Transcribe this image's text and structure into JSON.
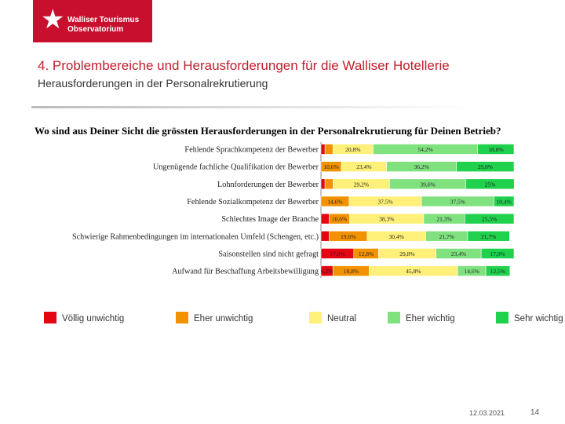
{
  "logo": {
    "line1": "Walliser Tourismus",
    "line2": "Observatorium",
    "icon": "star-icon"
  },
  "title": "4. Problembereiche und Herausforderungen für die Walliser Hotellerie",
  "subtitle": "Herausforderungen in der Personalrekrutierung",
  "footer": {
    "date": "12.03.2021",
    "page": "14"
  },
  "colors": {
    "brand": "#c8102e",
    "title": "#c0202c"
  },
  "chart_data": {
    "type": "bar",
    "orientation": "horizontal",
    "stacked": true,
    "percent_stacked": true,
    "title": "Wo sind aus Deiner Sicht die grössten Herausforderungen in der Personalrekrutierung für Deinen Betrieb?",
    "categories": [
      "Fehlende Sprachkompetenz der Bewerber",
      "Ungenügende fachliche Qualifikation der Bewerber",
      "Lohnforderungen der Bewerber",
      "Fehlende Sozialkompetenz der Bewerber",
      "Schlechtes Image der Branche",
      "Schwierige Rahmenbedingungen im internationalen Umfeld (Schengen, etc.)",
      "Saisonstellen sind nicht gefragt",
      "Aufwand für Beschaffung Arbeitsbewilligung"
    ],
    "series": [
      {
        "name": "Völlig unwichtig",
        "color": "#e30613",
        "values": [
          2.1,
          0,
          2.1,
          0,
          4.3,
          4.3,
          17.0,
          6.2
        ],
        "labels": [
          "",
          "",
          "",
          "",
          "",
          "",
          "17,0%",
          "6,2%"
        ]
      },
      {
        "name": "Eher unwichtig",
        "color": "#f39200",
        "values": [
          4.1,
          10.6,
          4.2,
          14.6,
          10.6,
          19.6,
          12.8,
          18.8
        ],
        "labels": [
          "",
          "10,6%",
          "",
          "14,6%",
          "10,6%",
          "19,6%",
          "12,8%",
          "18,8%"
        ]
      },
      {
        "name": "Neutral",
        "color": "#fff07a",
        "values": [
          20.8,
          23.4,
          29.2,
          37.5,
          38.3,
          30.4,
          29.8,
          45.8
        ],
        "labels": [
          "20,8%",
          "23,4%",
          "29,2%",
          "37,5%",
          "38,3%",
          "30,4%",
          "29,8%",
          "45,8%"
        ]
      },
      {
        "name": "Eher wichtig",
        "color": "#7fe27f",
        "values": [
          54.2,
          36.2,
          39.6,
          37.5,
          21.3,
          21.7,
          23.4,
          14.6
        ],
        "labels": [
          "54,2%",
          "36,2%",
          "39,6%",
          "37,5%",
          "21,3%",
          "21,7%",
          "23,4%",
          "14,6%"
        ]
      },
      {
        "name": "Sehr wichtig",
        "color": "#1fd14c",
        "values": [
          18.8,
          29.8,
          25.0,
          10.4,
          25.5,
          21.7,
          17.0,
          12.5
        ],
        "labels": [
          "18,8%",
          "29,8%",
          "25%",
          "10,4%",
          "25,5%",
          "21,7%",
          "17,0%",
          "12,5%"
        ]
      }
    ],
    "xlim": [
      0,
      100
    ],
    "legend_position": "bottom"
  }
}
